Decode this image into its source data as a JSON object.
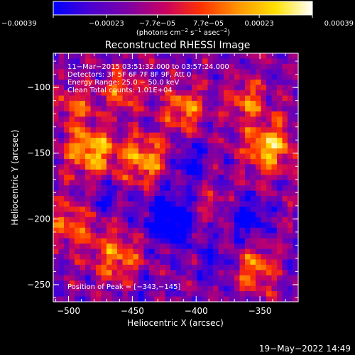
{
  "chart_data": {
    "type": "heatmap",
    "title": "Reconstructed RHESSI Image",
    "xlabel": "Heliocentric X (arcsec)",
    "ylabel": "Heliocentric Y (arcsec)",
    "xlim": [
      -512,
      -320
    ],
    "ylim": [
      -263,
      -74
    ],
    "x_ticks": [
      {
        "value": -500,
        "label": "−500"
      },
      {
        "value": -450,
        "label": "−450"
      },
      {
        "value": -400,
        "label": "−400"
      },
      {
        "value": -350,
        "label": "−350"
      }
    ],
    "y_ticks": [
      {
        "value": -100,
        "label": "−100"
      },
      {
        "value": -150,
        "label": "−150"
      },
      {
        "value": -200,
        "label": "−200"
      },
      {
        "value": -250,
        "label": "−250"
      }
    ],
    "colorbar": {
      "range": [
        -0.00039,
        0.00039
      ],
      "ticks": [
        {
          "value": -0.00039,
          "label": "−0.00039"
        },
        {
          "value": -0.00023,
          "label": "−0.00023"
        },
        {
          "value": -7.7e-05,
          "label": "−7.7e−05"
        },
        {
          "value": 7.7e-05,
          "label": "7.7e−05"
        },
        {
          "value": 0.00023,
          "label": "0.00023"
        },
        {
          "value": 0.00039,
          "label": "0.00039"
        }
      ],
      "unit_parts": [
        "(photons cm",
        "−2",
        " s",
        "−1",
        " asec",
        "−2",
        ")"
      ],
      "colormap": [
        "#0000ff",
        "#4b00d2",
        "#7d00a5",
        "#c80064",
        "#ff3200",
        "#ff9600",
        "#ffe100",
        "#ffffff"
      ]
    },
    "annotations": [
      "11−Mar−2015 03:51:32.000 to 03:57:24.000",
      "Detectors: 3F 5F 6F 7F 8F 9F, Att 0",
      "Energy Range: 25.0 − 50.0 keV",
      "Clean    Total counts: 1.01E+04"
    ],
    "peak_label": "Position of Peak = [−343,−145]",
    "peak": {
      "x": -343,
      "y": -145
    },
    "sources": [
      {
        "x": -343,
        "y": -145,
        "amp": 1.0,
        "sigma": 13
      },
      {
        "x": -360,
        "y": -110,
        "amp": 0.65,
        "sigma": 10
      },
      {
        "x": -482,
        "y": -148,
        "amp": 0.95,
        "sigma": 14
      },
      {
        "x": -440,
        "y": -155,
        "amp": 0.85,
        "sigma": 12
      },
      {
        "x": -410,
        "y": -117,
        "amp": 0.75,
        "sigma": 11
      },
      {
        "x": -458,
        "y": -103,
        "amp": 0.6,
        "sigma": 10
      },
      {
        "x": -495,
        "y": -112,
        "amp": 0.55,
        "sigma": 10
      },
      {
        "x": -462,
        "y": -228,
        "amp": 0.7,
        "sigma": 13
      },
      {
        "x": -498,
        "y": -205,
        "amp": 0.6,
        "sigma": 12
      },
      {
        "x": -355,
        "y": -238,
        "amp": 0.65,
        "sigma": 12
      },
      {
        "x": -390,
        "y": -190,
        "amp": 0.35,
        "sigma": 10
      }
    ],
    "dips": [
      {
        "x": -420,
        "y": -200,
        "amp": 0.85,
        "sigma": 14
      },
      {
        "x": -405,
        "y": -157,
        "amp": 0.6,
        "sigma": 9
      },
      {
        "x": -360,
        "y": -200,
        "amp": 0.55,
        "sigma": 11
      },
      {
        "x": -470,
        "y": -185,
        "amp": 0.4,
        "sigma": 8
      },
      {
        "x": -385,
        "y": -235,
        "amp": 0.45,
        "sigma": 9
      },
      {
        "x": -440,
        "y": -255,
        "amp": 0.3,
        "sigma": 8
      }
    ],
    "base_level": 0.0
  },
  "footer": {
    "timestamp": "19−May−2022 14:49"
  }
}
